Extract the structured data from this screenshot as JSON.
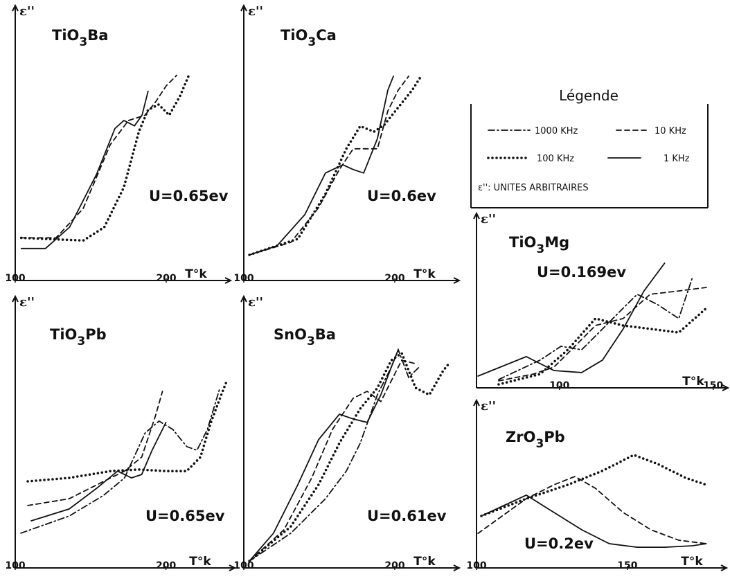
{
  "chart_data": [
    {
      "type": "line",
      "title": "TiO3Ba",
      "y_label": "ε''",
      "x_label": "T°k",
      "annotation": "U=0.65ev",
      "xlim": [
        100,
        239
      ],
      "xticks": [
        100,
        200
      ],
      "ylim": [
        0,
        100
      ],
      "series": [
        {
          "style": "solid",
          "color": "#111",
          "x": [
            104,
            120,
            136,
            154,
            166,
            172,
            179,
            184,
            188
          ],
          "values": [
            12,
            12,
            20,
            40,
            57,
            60,
            58,
            62,
            71
          ]
        },
        {
          "style": "dashed",
          "color": "#111",
          "x": [
            104,
            127,
            145,
            163,
            175,
            186,
            193,
            200,
            207
          ],
          "values": [
            16,
            16,
            27,
            51,
            60,
            62,
            67,
            73,
            77
          ]
        },
        {
          "style": "dotted",
          "color": "#111",
          "x": [
            104,
            145,
            159,
            172,
            182,
            188,
            195,
            202,
            209,
            215
          ],
          "values": [
            16,
            15,
            20,
            35,
            56,
            64,
            66,
            62,
            69,
            77
          ]
        }
      ]
    },
    {
      "type": "line",
      "title": "TiO3Ca",
      "y_label": "ε''",
      "x_label": "T°k",
      "annotation": "U=0.6ev",
      "xlim": [
        100,
        239
      ],
      "xticks": [
        100,
        200
      ],
      "ylim": [
        0,
        100
      ],
      "series": [
        {
          "style": "solid",
          "color": "#111",
          "x": [
            103.7,
            122,
            140.4,
            154.1,
            165.6,
            172.5,
            179.4,
            188.5,
            195.4,
            199.1
          ],
          "values": [
            9.6,
            13,
            24.7,
            40.3,
            43.4,
            41.6,
            40.3,
            53.2,
            71.4,
            76.6
          ]
        },
        {
          "style": "dashed",
          "color": "#111",
          "x": [
            103.7,
            131.2,
            149.5,
            163.3,
            172.5,
            181.7,
            188.5,
            195.4,
            202.3,
            209.2
          ],
          "values": [
            9.6,
            14.3,
            27.3,
            41.6,
            49.4,
            49.4,
            49.4,
            63.6,
            71.4,
            76.6
          ]
        },
        {
          "style": "dotted",
          "color": "#111",
          "x": [
            103.7,
            135.8,
            154.1,
            167.9,
            177.1,
            186.2,
            193.1,
            202.3,
            211.5,
            217.4
          ],
          "values": [
            9.6,
            15.6,
            32.5,
            49.4,
            57.9,
            55.8,
            58.4,
            64.9,
            71.4,
            76.6
          ]
        }
      ]
    },
    {
      "type": "line",
      "title": "TiO3Pb",
      "y_label": "ε''",
      "x_label": "T°k",
      "annotation": "U=0.65ev",
      "xlim": [
        100,
        242
      ],
      "xticks": [
        100,
        200
      ],
      "ylim": [
        0,
        100
      ],
      "series": [
        {
          "style": "solid",
          "color": "#111",
          "x": [
            110.6,
            135.8,
            154.1,
            167.9,
            177.1,
            183.9,
            190.8,
            195.4,
            200
          ],
          "values": [
            17.9,
            22.4,
            30.3,
            36.8,
            34.2,
            35.5,
            44.7,
            50,
            55.3
          ]
        },
        {
          "style": "dashed",
          "color": "#111",
          "x": [
            108.3,
            135.8,
            158.7,
            172.5,
            183.9,
            188.5,
            193.1,
            197.7
          ],
          "values": [
            23.7,
            26.3,
            32.9,
            36.8,
            42.1,
            50,
            57.9,
            67.1
          ]
        },
        {
          "style": "dotted",
          "color": "#111",
          "x": [
            108.3,
            135.8,
            163.3,
            181.7,
            200,
            213.8,
            222.9,
            229.8,
            236.7,
            240.4
          ],
          "values": [
            32.9,
            34.2,
            36.8,
            37.4,
            36.8,
            36.8,
            42.1,
            55.3,
            65.8,
            71.1
          ]
        },
        {
          "style": "dashdot",
          "color": "#111",
          "x": [
            103.7,
            135.8,
            158.7,
            172.5,
            186.2,
            195.4,
            204.6,
            213.8,
            220.6,
            227.5,
            235.8
          ],
          "values": [
            13.2,
            19.7,
            27.6,
            34.2,
            51.3,
            55.8,
            52.6,
            46.1,
            44.7,
            52.6,
            68.4
          ]
        }
      ]
    },
    {
      "type": "line",
      "title": "SnO3Ba",
      "y_label": "ε''",
      "x_label": "T°k",
      "annotation": "U=0.61ev",
      "xlim": [
        100,
        239
      ],
      "xticks": [
        100,
        200
      ],
      "ylim": [
        0,
        100
      ],
      "series": [
        {
          "style": "solid",
          "color": "#111",
          "x": [
            103.7,
            119.7,
            135.8,
            149.5,
            163.3,
            172.5,
            181.7,
            190.8,
            197.7,
            202.3
          ],
          "values": [
            2.6,
            13.2,
            31.6,
            48.7,
            58.4,
            56.6,
            55.3,
            65.8,
            76.3,
            82.9
          ]
        },
        {
          "style": "dashed",
          "color": "#111",
          "x": [
            103.7,
            126.6,
            145,
            158.7,
            172.5,
            181.7,
            190.8,
            197.7,
            204.6,
            213.8
          ],
          "values": [
            2.6,
            14.5,
            34.2,
            52.6,
            64.5,
            67.1,
            63.2,
            71.1,
            78.9,
            77.6
          ]
        },
        {
          "style": "dotted",
          "color": "#111",
          "x": [
            103.7,
            131.2,
            149.5,
            163.3,
            177.1,
            188.5,
            197.7,
            204.6,
            213.8,
            222.9,
            232.1,
            235.8
          ],
          "values": [
            2.6,
            15.8,
            31.6,
            47.4,
            60.5,
            68.4,
            78.9,
            81.6,
            68.4,
            65.8,
            75,
            77.6
          ]
        },
        {
          "style": "dashdot",
          "color": "#111",
          "x": [
            103.7,
            131.2,
            154.1,
            167.9,
            177.1,
            188.5,
            197.7,
            202.3,
            209.2,
            216.1
          ],
          "values": [
            2.6,
            13.2,
            26.3,
            36.8,
            47.4,
            65.8,
            76.3,
            82.9,
            72.4,
            76.3
          ]
        }
      ]
    },
    {
      "type": "line",
      "title": "TiO3Mg",
      "y_label": "ε''",
      "x_label": "T°k",
      "annotation": "U=0.169ev",
      "xlim": [
        73,
        153
      ],
      "xticks": [
        100,
        150
      ],
      "ylim": [
        0,
        100
      ],
      "series": [
        {
          "style": "solid",
          "color": "#111",
          "x": [
            73.5,
            89.2,
            98.2,
            107.2,
            114,
            120.7,
            127.5,
            134.2
          ],
          "values": [
            7.1,
            18.8,
            10.4,
            9.2,
            16.7,
            35.4,
            58.3,
            75
          ]
        },
        {
          "style": "dashed",
          "color": "#111",
          "x": [
            80.2,
            91.5,
            98.2,
            105,
            111.7,
            120.7,
            129.5,
            138.8,
            147.8
          ],
          "values": [
            4.2,
            8.3,
            12.5,
            25,
            37.5,
            41.7,
            56.3,
            58.3,
            60.4
          ]
        },
        {
          "style": "dotted",
          "color": "#111",
          "x": [
            80.2,
            93.7,
            102.7,
            111.7,
            120.7,
            129.8,
            138.8,
            147.8
          ],
          "values": [
            2.1,
            8.3,
            22.9,
            41.7,
            37.5,
            35.4,
            33.3,
            47.9
          ]
        },
        {
          "style": "dashdot",
          "color": "#111",
          "x": [
            80.2,
            93.7,
            100.5,
            107.2,
            114,
            120.7,
            125.3,
            132,
            138.8,
            143.3
          ],
          "values": [
            5,
            16.7,
            25,
            22.9,
            35.4,
            47.9,
            56.3,
            50,
            41.7,
            66.7
          ]
        }
      ]
    },
    {
      "type": "line",
      "title": "ZrO3Pb",
      "y_label": "ε''",
      "x_label": "T°k",
      "annotation": "U=0.2ev",
      "xlim": [
        100,
        181
      ],
      "xticks": [
        100,
        150
      ],
      "ylim": [
        0,
        100
      ],
      "series": [
        {
          "style": "solid",
          "color": "#111",
          "x": [
            101.6,
            116.5,
            125.7,
            134.9,
            144,
            153.2,
            162.4,
            171.6,
            176.1
          ],
          "values": [
            32.6,
            45.7,
            34.8,
            23.9,
            15.2,
            13,
            13,
            13.9,
            15.2
          ]
        },
        {
          "style": "dashed",
          "color": "#111",
          "x": [
            100.5,
            116.5,
            125.7,
            132.6,
            139.4,
            148.6,
            157.8,
            167,
            176.1
          ],
          "values": [
            21.7,
            43.5,
            52.2,
            57.4,
            50,
            34.8,
            23.9,
            17.4,
            15.2
          ]
        },
        {
          "style": "dotted",
          "color": "#111",
          "x": [
            101.6,
            116.5,
            130.3,
            141.7,
            152.1,
            160.1,
            169.3,
            176.1
          ],
          "values": [
            32.6,
            43.5,
            52.2,
            60.9,
            70.9,
            65.2,
            56.5,
            52.2
          ]
        }
      ]
    }
  ],
  "legend": {
    "title": "Légende",
    "items": [
      {
        "label": "1000 KHz",
        "style": "dashdot"
      },
      {
        "label": "10 KHz",
        "style": "dashed"
      },
      {
        "label": "100 KHz",
        "style": "dotted"
      },
      {
        "label": "1 KHz",
        "style": "solid"
      }
    ],
    "note": "ε'': UNITES ARBITRAIRES"
  }
}
